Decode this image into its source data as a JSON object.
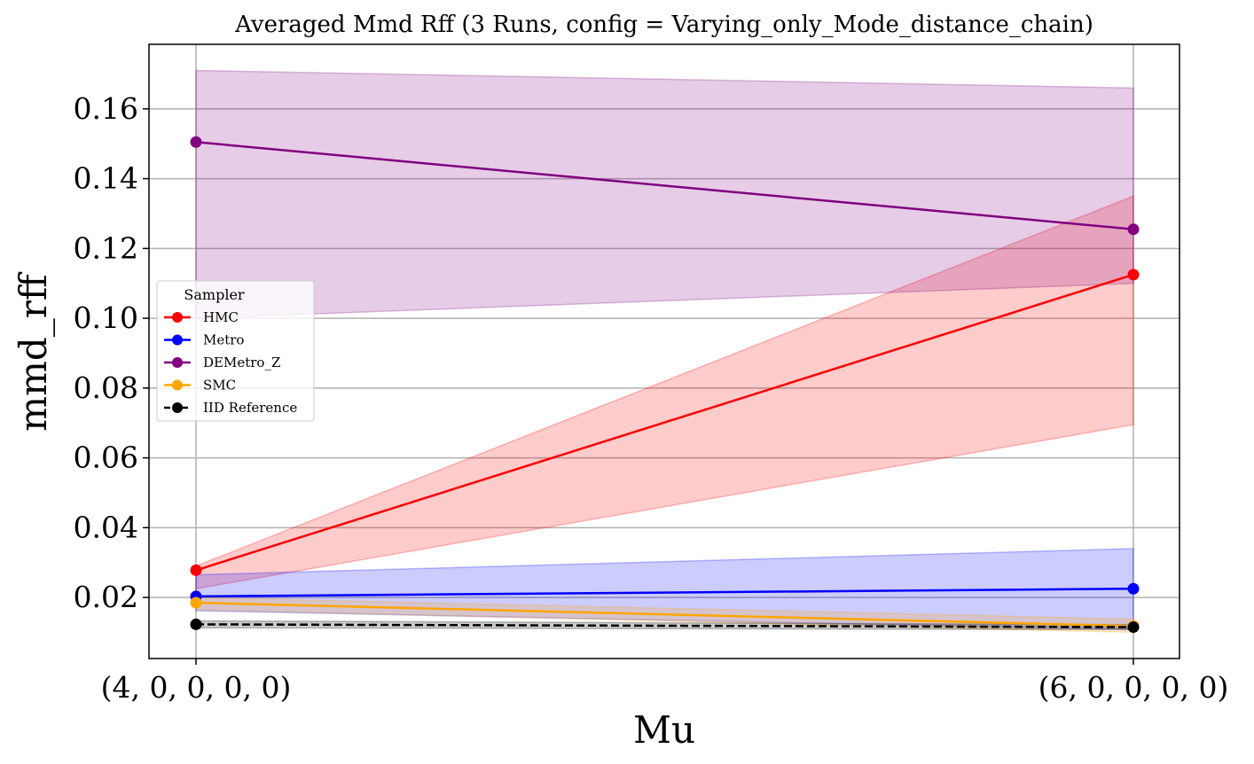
{
  "chart_data": {
    "type": "line",
    "title": "Averaged Mmd Rff (3 Runs, config = Varying_only_Mode_distance_chain)",
    "xlabel": "Mu",
    "ylabel": "mmd_rff",
    "categories": [
      "(4, 0, 0, 0, 0)",
      "(6, 0, 0, 0, 0)"
    ],
    "ylim": [
      0.0025,
      0.1785
    ],
    "yticks": [
      0.02,
      0.04,
      0.06,
      0.08,
      0.1,
      0.12,
      0.14,
      0.16
    ],
    "ytick_labels": [
      "0.02",
      "0.04",
      "0.06",
      "0.08",
      "0.10",
      "0.12",
      "0.14",
      "0.16"
    ],
    "grid": true,
    "legend": {
      "title": "Sampler",
      "placement": "center-left"
    },
    "series": [
      {
        "name": "HMC",
        "color": "#ff0000",
        "dashed": false,
        "values": [
          0.0278,
          0.1125
        ],
        "lower": [
          0.0225,
          0.0695
        ],
        "upper": [
          0.029,
          0.135
        ]
      },
      {
        "name": "Metro",
        "color": "#0000ff",
        "dashed": false,
        "values": [
          0.0203,
          0.0225
        ],
        "lower": [
          0.0162,
          0.0108
        ],
        "upper": [
          0.0265,
          0.034
        ]
      },
      {
        "name": "DEMetro_Z",
        "color": "#800080",
        "dashed": false,
        "values": [
          0.1505,
          0.1255
        ],
        "lower": [
          0.1,
          0.11
        ],
        "upper": [
          0.171,
          0.166
        ]
      },
      {
        "name": "SMC",
        "color": "#ffa500",
        "dashed": false,
        "values": [
          0.0185,
          0.0118
        ],
        "lower": [
          0.0165,
          0.01
        ],
        "upper": [
          0.02,
          0.0138
        ]
      },
      {
        "name": "IID Reference",
        "color": "#000000",
        "dashed": true,
        "values": [
          0.0123,
          0.0115
        ],
        "lower": [
          0.0113,
          0.0108
        ],
        "upper": [
          0.0133,
          0.0122
        ]
      }
    ]
  }
}
